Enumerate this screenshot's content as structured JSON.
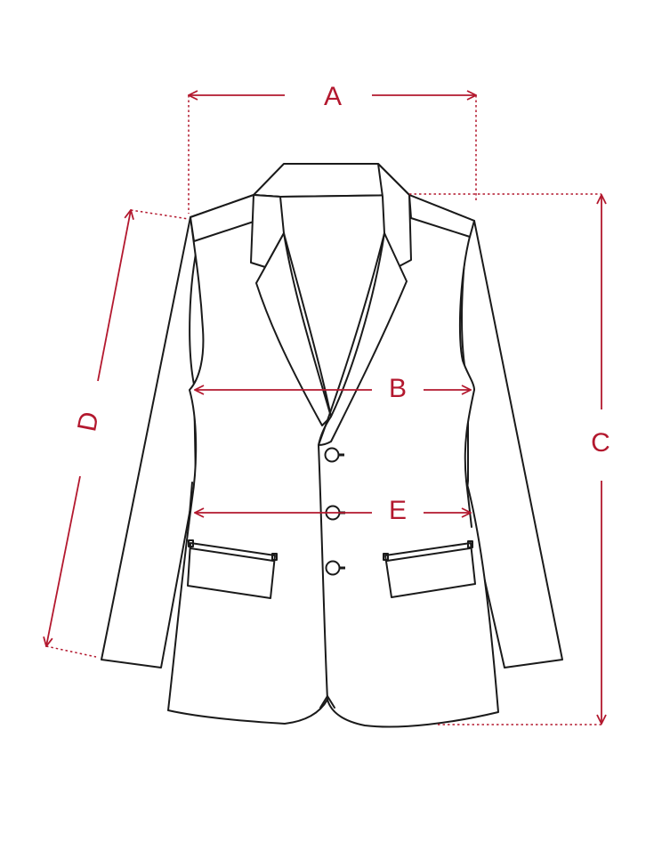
{
  "accent_color": "#b3182e",
  "measurements": {
    "a": "A",
    "b": "B",
    "c": "C",
    "d": "D",
    "e": "E"
  }
}
